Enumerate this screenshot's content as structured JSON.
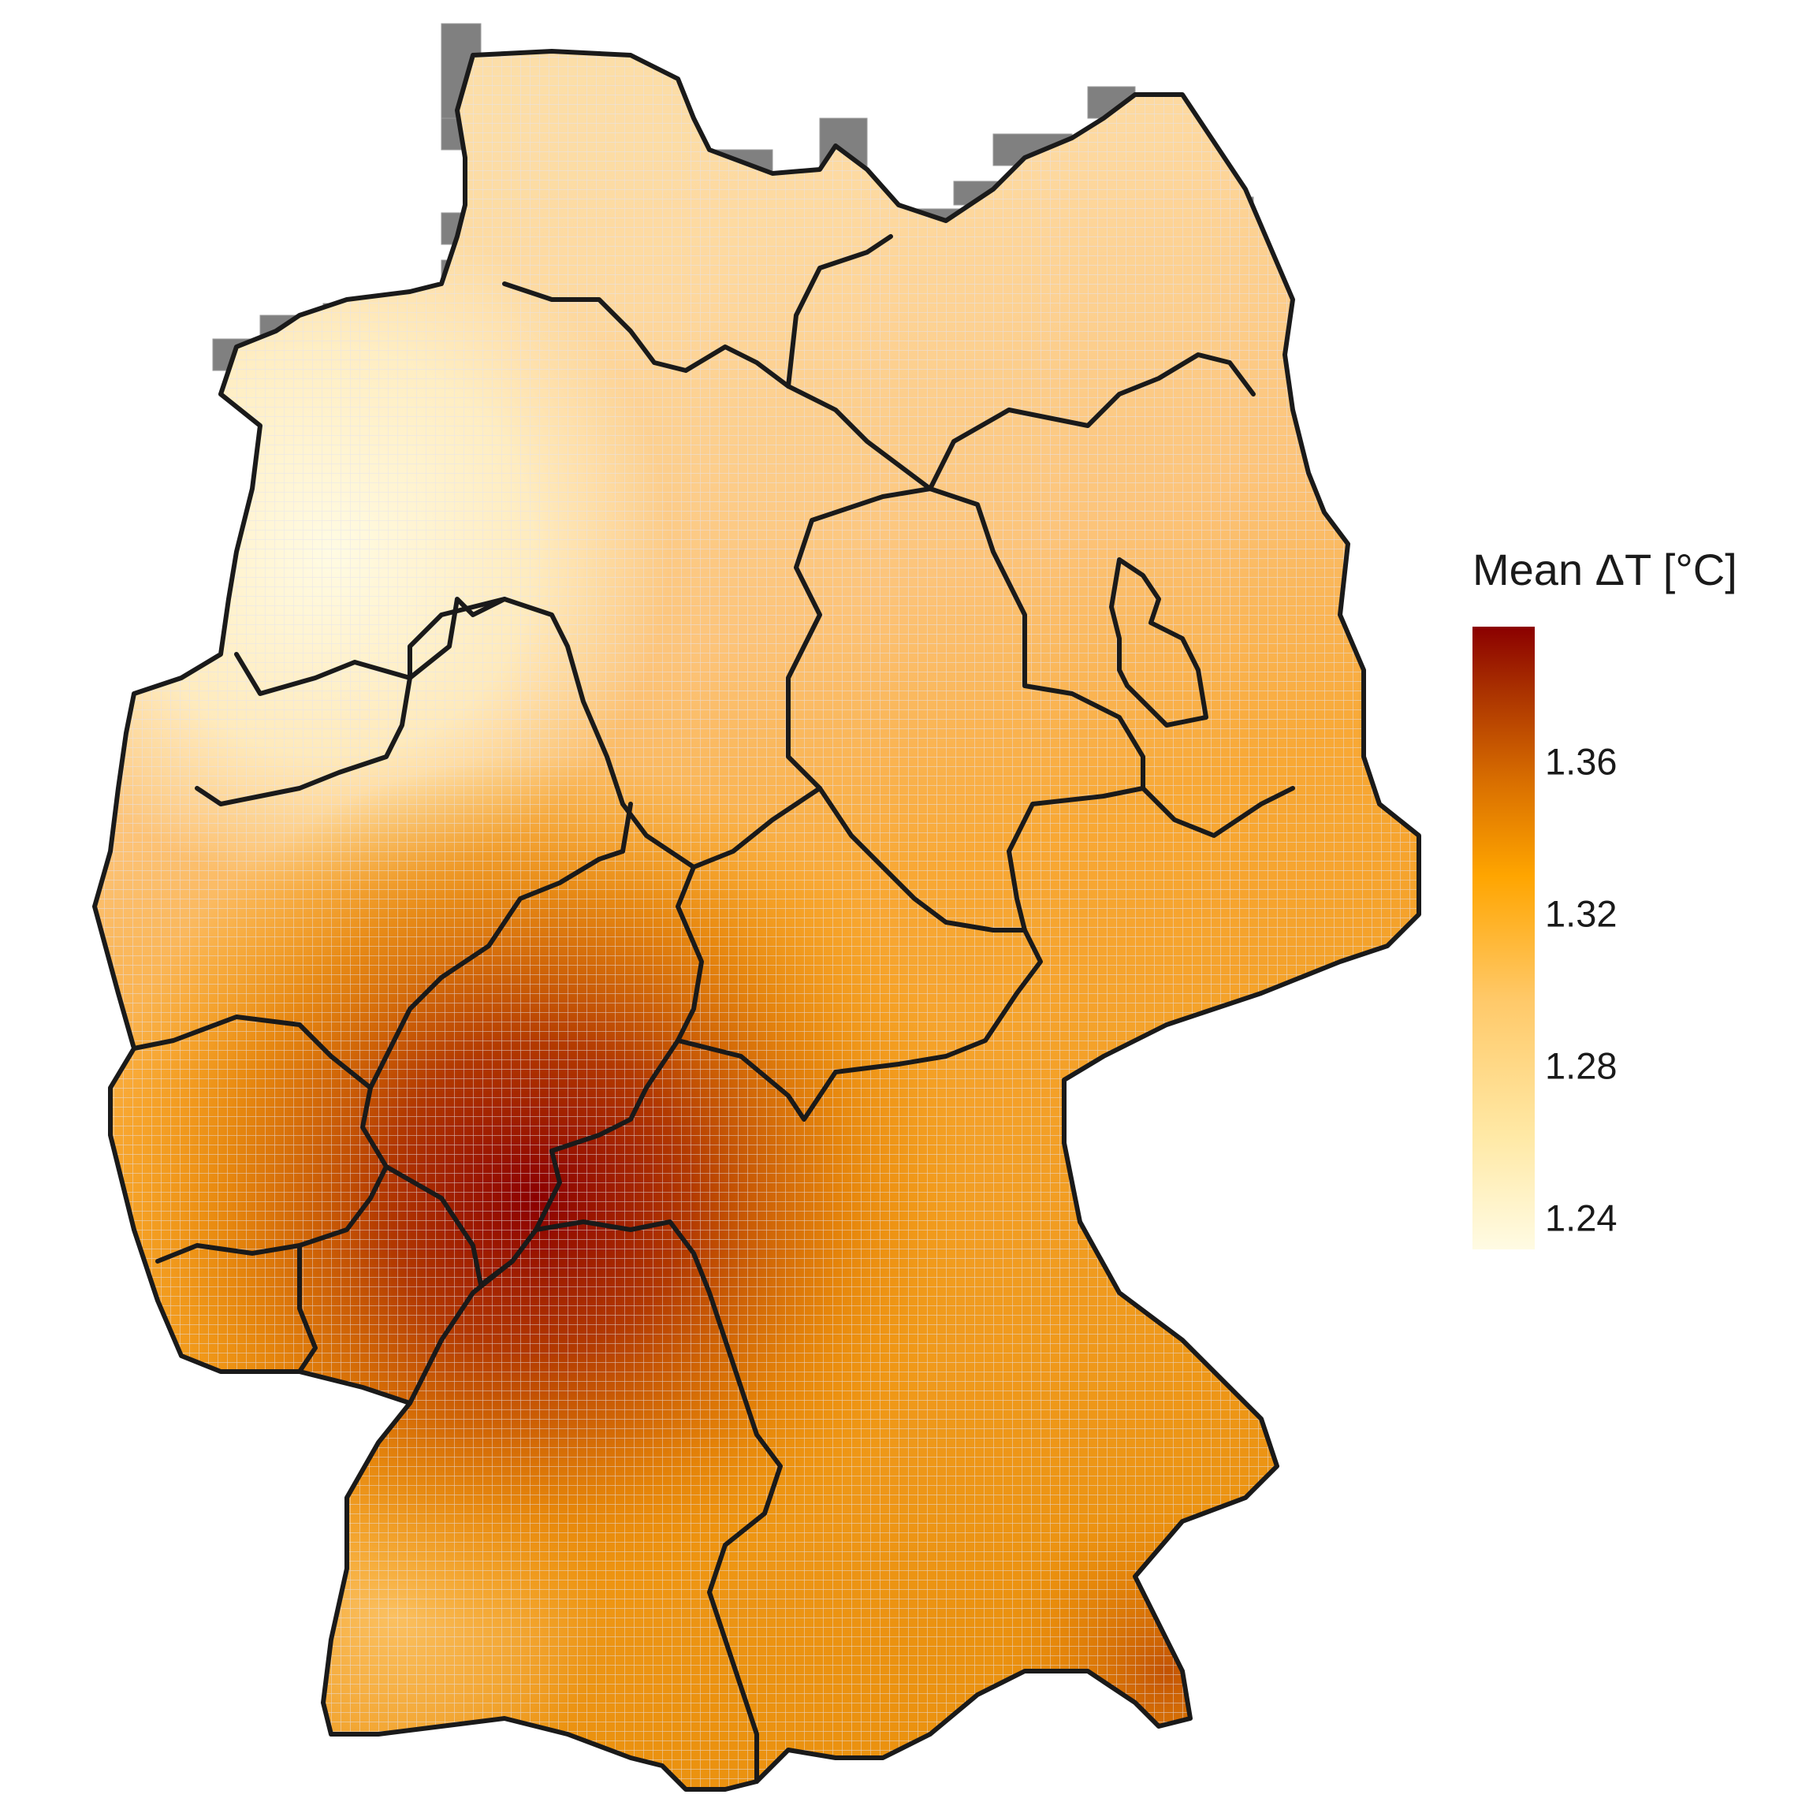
{
  "legend": {
    "title": "Mean ΔT [°C]",
    "ticks": [
      "1.36",
      "1.32",
      "1.28",
      "1.24"
    ],
    "tick_values": [
      1.36,
      1.32,
      1.28,
      1.24
    ],
    "range": [
      1.225,
      1.39
    ],
    "colors": [
      "#fffbe3",
      "#ffe9a6",
      "#ffc969",
      "#ffa500",
      "#d96f00",
      "#a93000",
      "#8b0000"
    ]
  },
  "map": {
    "subject": "Germany gridded mean temperature change with federal state borders",
    "missing_cell_color": "#808080",
    "border_color": "#1a1a1a",
    "grid_line_color": "#d6d6e0"
  }
}
